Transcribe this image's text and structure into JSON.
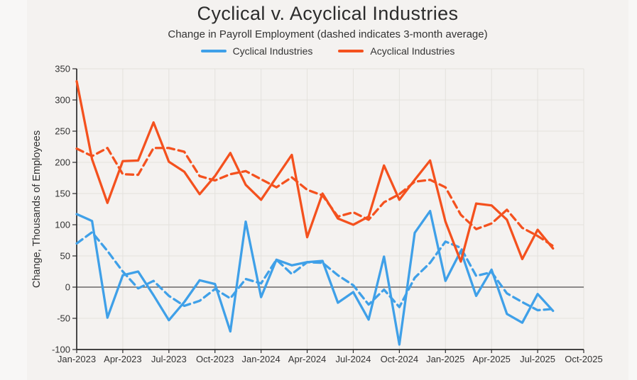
{
  "figure": {
    "title": "Cyclical v. Acyclical Industries",
    "subtitle": "Change in Payroll Employment (dashed indicates 3-month average)",
    "y_axis_label": "Change, Thousands of Employees",
    "background": "#f4f2f0",
    "page_background": "#f8f7f6",
    "text_color": "#303030"
  },
  "legend": [
    {
      "label": "Cyclical Industries",
      "color": "#3fa0e8"
    },
    {
      "label": "Acyclical Industries",
      "color": "#f4511e"
    }
  ],
  "chart_data": {
    "type": "line",
    "title": "Cyclical v. Acyclical Industries",
    "subtitle": "Change in Payroll Employment (dashed indicates 3-month average)",
    "ylabel": "Change, Thousands of Employees",
    "xlabel": "",
    "grid": true,
    "legend_position": "top-center",
    "ylim": [
      -100,
      350
    ],
    "y_ticks": [
      350,
      300,
      250,
      200,
      150,
      100,
      50,
      0,
      -50,
      -100
    ],
    "x_tick_labels": [
      "Jan-2023",
      "Apr-2023",
      "Jul-2023",
      "Oct-2023",
      "Jan-2024",
      "Apr-2024",
      "Jul-2024",
      "Oct-2024",
      "Jan-2025",
      "Apr-2025",
      "Jul-2025",
      "Oct-2025"
    ],
    "x_axis_span_months": 33,
    "months": [
      "Jan-2023",
      "Feb-2023",
      "Mar-2023",
      "Apr-2023",
      "May-2023",
      "Jun-2023",
      "Jul-2023",
      "Aug-2023",
      "Sep-2023",
      "Oct-2023",
      "Nov-2023",
      "Dec-2023",
      "Jan-2024",
      "Feb-2024",
      "Mar-2024",
      "Apr-2024",
      "May-2024",
      "Jun-2024",
      "Jul-2024",
      "Aug-2024",
      "Sep-2024",
      "Oct-2024",
      "Nov-2024",
      "Dec-2024",
      "Jan-2025",
      "Feb-2025",
      "Mar-2025",
      "Apr-2025",
      "May-2025",
      "Jun-2025",
      "Jul-2025",
      "Aug-2025"
    ],
    "series": [
      {
        "name": "Cyclical Industries",
        "style": "solid",
        "color": "#3fa0e8",
        "values": [
          117,
          106,
          -49,
          19,
          25,
          -13,
          -53,
          -24,
          11,
          5,
          -71,
          105,
          -16,
          44,
          35,
          40,
          42,
          -25,
          -8,
          -52,
          49,
          -92,
          87,
          122,
          10,
          58,
          -14,
          28,
          -43,
          -57,
          -11,
          -38
        ]
      },
      {
        "name": "Cyclical Industries (3-month average)",
        "style": "dashed",
        "color": "#3fa0e8",
        "values": [
          70,
          88,
          58,
          25,
          -2,
          10,
          -14,
          -30,
          -22,
          -3,
          -18,
          13,
          6,
          44,
          21,
          40,
          39,
          19,
          3,
          -28,
          -4,
          -32,
          15,
          39,
          73,
          63,
          18,
          24,
          -10,
          -24,
          -37,
          -35
        ]
      },
      {
        "name": "Acyclical Industries",
        "style": "solid",
        "color": "#f4511e",
        "values": [
          330,
          205,
          135,
          202,
          203,
          264,
          201,
          185,
          149,
          178,
          215,
          164,
          140,
          176,
          212,
          80,
          150,
          110,
          100,
          113,
          195,
          140,
          172,
          203,
          105,
          41,
          134,
          131,
          108,
          45,
          92,
          62
        ]
      },
      {
        "name": "Acyclical Industries (3-month average)",
        "style": "dashed",
        "color": "#f4511e",
        "values": [
          222,
          210,
          223,
          181,
          180,
          223,
          223,
          217,
          178,
          171,
          181,
          186,
          173,
          160,
          176,
          156,
          147,
          113,
          120,
          108,
          136,
          149,
          169,
          172,
          160,
          116,
          93,
          102,
          124,
          95,
          82,
          66
        ]
      }
    ],
    "zero_line": true,
    "plot_colors": {
      "gridline": "#e3e1dd",
      "axis": "#2b2b2b",
      "zero_line": "#4d4d4d",
      "tick_text": "#333333"
    }
  }
}
